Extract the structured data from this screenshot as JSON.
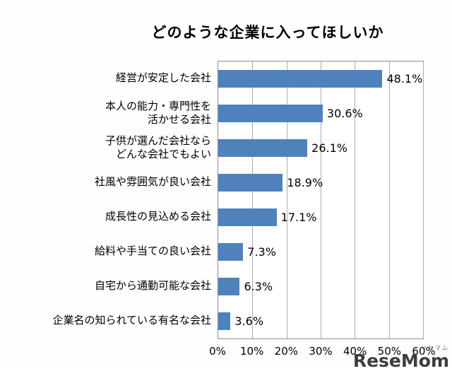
{
  "title": "どのような企業に入ってほしいか",
  "watermark": {
    "main": "ReseMom",
    "ruby": "リセマム"
  },
  "colors": {
    "bar": "#4f81bd",
    "gridline": "#ababab",
    "plot_border": "#8c8c8c"
  },
  "chart_data": {
    "type": "bar",
    "orientation": "horizontal",
    "title": "どのような企業に入ってほしいか",
    "categories": [
      "経営が安定した会社",
      "本人の能力・専門性を\n活かせる会社",
      "子供が選んだ会社なら\nどんな会社でもよい",
      "社風や雰囲気が良い会社",
      "成長性の見込める会社",
      "給料や手当ての良い会社",
      "自宅から通勤可能な会社",
      "企業名の知られている有名な会社"
    ],
    "values": [
      48.1,
      30.6,
      26.1,
      18.9,
      17.1,
      7.3,
      6.3,
      3.6
    ],
    "value_labels": [
      "48.1%",
      "30.6%",
      "26.1%",
      "18.9%",
      "17.1%",
      "7.3%",
      "6.3%",
      "3.6%"
    ],
    "xlabel": "",
    "ylabel": "",
    "xlim": [
      0,
      60
    ],
    "xticks": [
      "0%",
      "10%",
      "20%",
      "30%",
      "40%",
      "50%",
      "60%"
    ],
    "grid": true,
    "legend": false
  }
}
